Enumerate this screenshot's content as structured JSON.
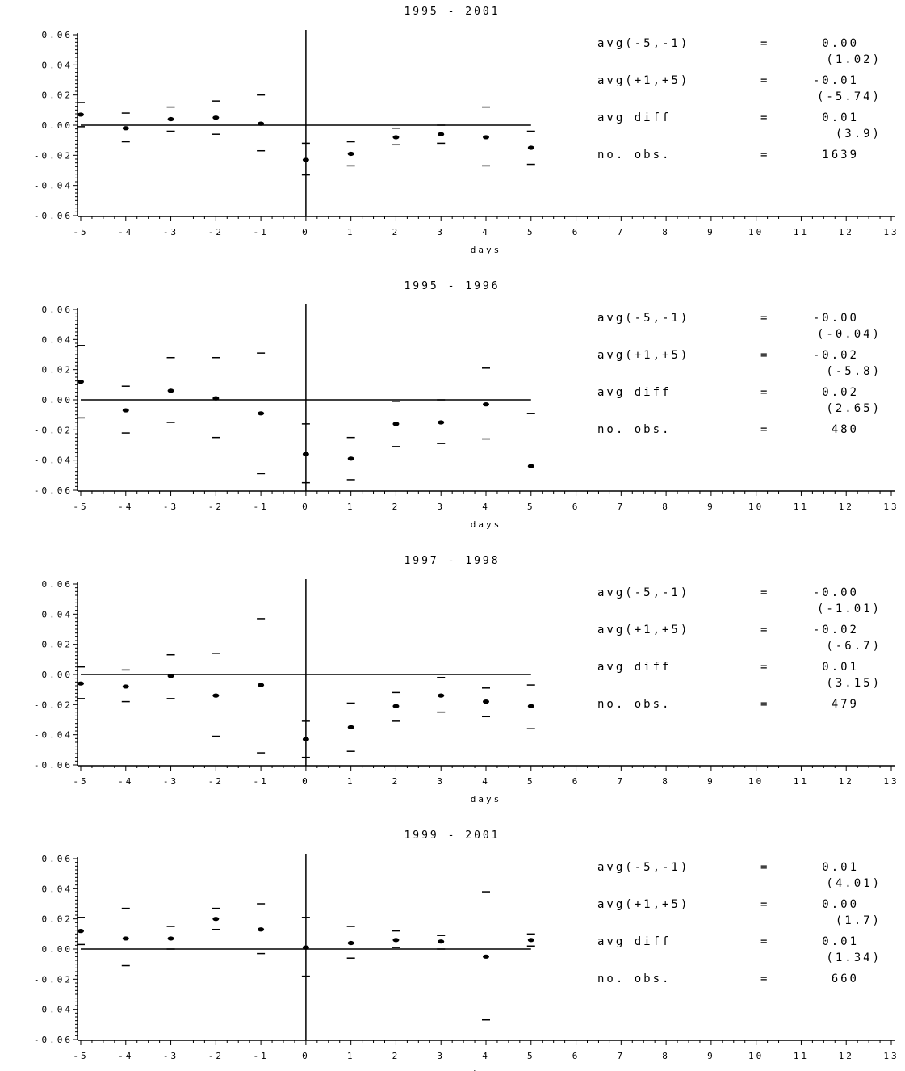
{
  "chart_data": [
    {
      "type": "scatter",
      "title": "1995 - 2001",
      "xlabel": "days",
      "ylabel": "",
      "xlim": [
        -5,
        13
      ],
      "ylim": [
        -0.06,
        0.06
      ],
      "xticks": [
        "-5",
        "-4",
        "-3",
        "-2",
        "-1",
        "0",
        "1",
        "2",
        "3",
        "4",
        "5",
        "6",
        "7",
        "8",
        "9",
        "10",
        "11",
        "12",
        "13"
      ],
      "yticks": [
        "0.06",
        "0.04",
        "0.02",
        "0.00",
        "-0.02",
        "-0.04",
        "-0.06"
      ],
      "x": [
        -5,
        -4,
        -3,
        -2,
        -1,
        0,
        1,
        2,
        3,
        4,
        5
      ],
      "mean": [
        0.007,
        -0.002,
        0.004,
        0.005,
        0.001,
        -0.023,
        -0.019,
        -0.008,
        -0.006,
        -0.008,
        -0.015
      ],
      "upper": [
        0.015,
        0.008,
        0.012,
        0.016,
        0.02,
        -0.012,
        -0.011,
        -0.002,
        0.0,
        0.012,
        -0.004
      ],
      "lower": [
        -0.001,
        -0.011,
        -0.004,
        -0.006,
        -0.017,
        -0.033,
        -0.027,
        -0.013,
        -0.012,
        -0.027,
        -0.026
      ],
      "stats": [
        {
          "label": "avg(-5,-1)",
          "eq": "=",
          "value": "0.00",
          "tstat": "(1.02)"
        },
        {
          "label": "avg(+1,+5)",
          "eq": "=",
          "value": "-0.01",
          "tstat": "(-5.74)"
        },
        {
          "label": "avg diff",
          "eq": "=",
          "value": "0.01",
          "tstat": "(3.9)"
        },
        {
          "label": "no. obs.",
          "eq": "=",
          "value": "1639",
          "tstat": ""
        }
      ]
    },
    {
      "type": "scatter",
      "title": "1995 - 1996",
      "xlabel": "days",
      "ylabel": "",
      "xlim": [
        -5,
        13
      ],
      "ylim": [
        -0.06,
        0.06
      ],
      "xticks": [
        "-5",
        "-4",
        "-3",
        "-2",
        "-1",
        "0",
        "1",
        "2",
        "3",
        "4",
        "5",
        "6",
        "7",
        "8",
        "9",
        "10",
        "11",
        "12",
        "13"
      ],
      "yticks": [
        "0.06",
        "0.04",
        "0.02",
        "0.00",
        "-0.02",
        "-0.04",
        "-0.06"
      ],
      "x": [
        -5,
        -4,
        -3,
        -2,
        -1,
        0,
        1,
        2,
        3,
        4,
        5
      ],
      "mean": [
        0.012,
        -0.007,
        0.006,
        0.001,
        -0.009,
        -0.036,
        -0.039,
        -0.016,
        -0.015,
        -0.003,
        -0.044
      ],
      "upper": [
        0.036,
        0.009,
        0.028,
        0.028,
        0.031,
        -0.016,
        -0.025,
        -0.001,
        0.0,
        0.021,
        -0.009
      ],
      "lower": [
        -0.012,
        -0.022,
        -0.015,
        -0.025,
        -0.049,
        -0.055,
        -0.053,
        -0.031,
        -0.029,
        -0.026,
        null
      ],
      "stats": [
        {
          "label": "avg(-5,-1)",
          "eq": "=",
          "value": "-0.00",
          "tstat": "(-0.04)"
        },
        {
          "label": "avg(+1,+5)",
          "eq": "=",
          "value": "-0.02",
          "tstat": "(-5.8)"
        },
        {
          "label": "avg diff",
          "eq": "=",
          "value": "0.02",
          "tstat": "(2.65)"
        },
        {
          "label": "no. obs.",
          "eq": "=",
          "value": "480",
          "tstat": ""
        }
      ]
    },
    {
      "type": "scatter",
      "title": "1997 - 1998",
      "xlabel": "days",
      "ylabel": "",
      "xlim": [
        -5,
        13
      ],
      "ylim": [
        -0.06,
        0.06
      ],
      "xticks": [
        "-5",
        "-4",
        "-3",
        "-2",
        "-1",
        "0",
        "1",
        "2",
        "3",
        "4",
        "5",
        "6",
        "7",
        "8",
        "9",
        "10",
        "11",
        "12",
        "13"
      ],
      "yticks": [
        "0.06",
        "0.04",
        "0.02",
        "0.00",
        "-0.02",
        "-0.04",
        "-0.06"
      ],
      "x": [
        -5,
        -4,
        -3,
        -2,
        -1,
        0,
        1,
        2,
        3,
        4,
        5
      ],
      "mean": [
        -0.006,
        -0.008,
        -0.001,
        -0.014,
        -0.007,
        -0.043,
        -0.035,
        -0.021,
        -0.014,
        -0.018,
        -0.021
      ],
      "upper": [
        0.005,
        0.003,
        0.013,
        0.014,
        0.037,
        -0.031,
        -0.019,
        -0.012,
        -0.002,
        -0.009,
        -0.007
      ],
      "lower": [
        -0.016,
        -0.018,
        -0.016,
        -0.041,
        -0.052,
        -0.055,
        -0.051,
        -0.031,
        -0.025,
        -0.028,
        -0.036
      ],
      "stats": [
        {
          "label": "avg(-5,-1)",
          "eq": "=",
          "value": "-0.00",
          "tstat": "(-1.01)"
        },
        {
          "label": "avg(+1,+5)",
          "eq": "=",
          "value": "-0.02",
          "tstat": "(-6.7)"
        },
        {
          "label": "avg diff",
          "eq": "=",
          "value": "0.01",
          "tstat": "(3.15)"
        },
        {
          "label": "no. obs.",
          "eq": "=",
          "value": "479",
          "tstat": ""
        }
      ]
    },
    {
      "type": "scatter",
      "title": "1999 - 2001",
      "xlabel": "days",
      "ylabel": "",
      "xlim": [
        -5,
        13
      ],
      "ylim": [
        -0.06,
        0.06
      ],
      "xticks": [
        "-5",
        "-4",
        "-3",
        "-2",
        "-1",
        "0",
        "1",
        "2",
        "3",
        "4",
        "5",
        "6",
        "7",
        "8",
        "9",
        "10",
        "11",
        "12",
        "13"
      ],
      "yticks": [
        "0.06",
        "0.04",
        "0.02",
        "0.00",
        "-0.02",
        "-0.04",
        "-0.06"
      ],
      "x": [
        -5,
        -4,
        -3,
        -2,
        -1,
        0,
        1,
        2,
        3,
        4,
        5
      ],
      "mean": [
        0.012,
        0.007,
        0.007,
        0.02,
        0.013,
        0.001,
        0.004,
        0.006,
        0.005,
        -0.005,
        0.006
      ],
      "upper": [
        0.021,
        0.027,
        0.015,
        0.027,
        0.03,
        0.021,
        0.015,
        0.012,
        0.009,
        0.038,
        0.01
      ],
      "lower": [
        0.003,
        -0.011,
        0.0,
        0.013,
        -0.003,
        -0.018,
        -0.006,
        0.001,
        0.0,
        -0.047,
        0.002
      ],
      "stats": [
        {
          "label": "avg(-5,-1)",
          "eq": "=",
          "value": "0.01",
          "tstat": "(4.01)"
        },
        {
          "label": "avg(+1,+5)",
          "eq": "=",
          "value": "0.00",
          "tstat": "(1.7)"
        },
        {
          "label": "avg diff",
          "eq": "=",
          "value": "0.01",
          "tstat": "(1.34)"
        },
        {
          "label": "no. obs.",
          "eq": "=",
          "value": "660",
          "tstat": ""
        }
      ]
    }
  ]
}
